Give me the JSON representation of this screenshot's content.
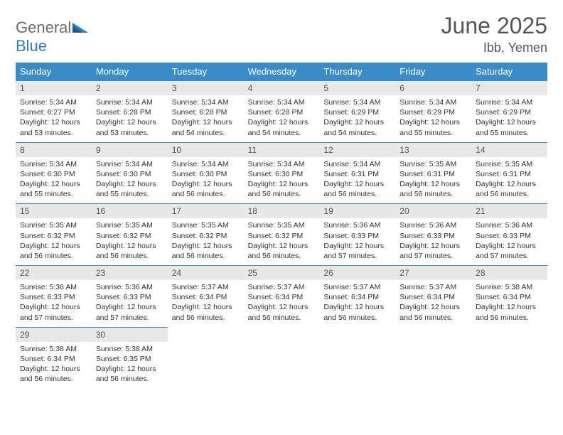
{
  "brand": {
    "part1": "General",
    "part2": "Blue"
  },
  "title": "June 2025",
  "location": "Ibb, Yemen",
  "colors": {
    "header_bg": "#3b8bc9",
    "header_text": "#ffffff",
    "daynum_bg": "#e8e8e8",
    "rule": "#3b8bc9",
    "brand_gray": "#6b6b6b",
    "brand_blue": "#2f7ac0"
  },
  "weekdays": [
    "Sunday",
    "Monday",
    "Tuesday",
    "Wednesday",
    "Thursday",
    "Friday",
    "Saturday"
  ],
  "days": [
    {
      "n": 1,
      "sunrise": "5:34 AM",
      "sunset": "6:27 PM",
      "daylight": "12 hours and 53 minutes."
    },
    {
      "n": 2,
      "sunrise": "5:34 AM",
      "sunset": "6:28 PM",
      "daylight": "12 hours and 53 minutes."
    },
    {
      "n": 3,
      "sunrise": "5:34 AM",
      "sunset": "6:28 PM",
      "daylight": "12 hours and 54 minutes."
    },
    {
      "n": 4,
      "sunrise": "5:34 AM",
      "sunset": "6:28 PM",
      "daylight": "12 hours and 54 minutes."
    },
    {
      "n": 5,
      "sunrise": "5:34 AM",
      "sunset": "6:29 PM",
      "daylight": "12 hours and 54 minutes."
    },
    {
      "n": 6,
      "sunrise": "5:34 AM",
      "sunset": "6:29 PM",
      "daylight": "12 hours and 55 minutes."
    },
    {
      "n": 7,
      "sunrise": "5:34 AM",
      "sunset": "6:29 PM",
      "daylight": "12 hours and 55 minutes."
    },
    {
      "n": 8,
      "sunrise": "5:34 AM",
      "sunset": "6:30 PM",
      "daylight": "12 hours and 55 minutes."
    },
    {
      "n": 9,
      "sunrise": "5:34 AM",
      "sunset": "6:30 PM",
      "daylight": "12 hours and 55 minutes."
    },
    {
      "n": 10,
      "sunrise": "5:34 AM",
      "sunset": "6:30 PM",
      "daylight": "12 hours and 56 minutes."
    },
    {
      "n": 11,
      "sunrise": "5:34 AM",
      "sunset": "6:30 PM",
      "daylight": "12 hours and 56 minutes."
    },
    {
      "n": 12,
      "sunrise": "5:34 AM",
      "sunset": "6:31 PM",
      "daylight": "12 hours and 56 minutes."
    },
    {
      "n": 13,
      "sunrise": "5:35 AM",
      "sunset": "6:31 PM",
      "daylight": "12 hours and 56 minutes."
    },
    {
      "n": 14,
      "sunrise": "5:35 AM",
      "sunset": "6:31 PM",
      "daylight": "12 hours and 56 minutes."
    },
    {
      "n": 15,
      "sunrise": "5:35 AM",
      "sunset": "6:32 PM",
      "daylight": "12 hours and 56 minutes."
    },
    {
      "n": 16,
      "sunrise": "5:35 AM",
      "sunset": "6:32 PM",
      "daylight": "12 hours and 56 minutes."
    },
    {
      "n": 17,
      "sunrise": "5:35 AM",
      "sunset": "6:32 PM",
      "daylight": "12 hours and 56 minutes."
    },
    {
      "n": 18,
      "sunrise": "5:35 AM",
      "sunset": "6:32 PM",
      "daylight": "12 hours and 56 minutes."
    },
    {
      "n": 19,
      "sunrise": "5:36 AM",
      "sunset": "6:33 PM",
      "daylight": "12 hours and 57 minutes."
    },
    {
      "n": 20,
      "sunrise": "5:36 AM",
      "sunset": "6:33 PM",
      "daylight": "12 hours and 57 minutes."
    },
    {
      "n": 21,
      "sunrise": "5:36 AM",
      "sunset": "6:33 PM",
      "daylight": "12 hours and 57 minutes."
    },
    {
      "n": 22,
      "sunrise": "5:36 AM",
      "sunset": "6:33 PM",
      "daylight": "12 hours and 57 minutes."
    },
    {
      "n": 23,
      "sunrise": "5:36 AM",
      "sunset": "6:33 PM",
      "daylight": "12 hours and 57 minutes."
    },
    {
      "n": 24,
      "sunrise": "5:37 AM",
      "sunset": "6:34 PM",
      "daylight": "12 hours and 56 minutes."
    },
    {
      "n": 25,
      "sunrise": "5:37 AM",
      "sunset": "6:34 PM",
      "daylight": "12 hours and 56 minutes."
    },
    {
      "n": 26,
      "sunrise": "5:37 AM",
      "sunset": "6:34 PM",
      "daylight": "12 hours and 56 minutes."
    },
    {
      "n": 27,
      "sunrise": "5:37 AM",
      "sunset": "6:34 PM",
      "daylight": "12 hours and 56 minutes."
    },
    {
      "n": 28,
      "sunrise": "5:38 AM",
      "sunset": "6:34 PM",
      "daylight": "12 hours and 56 minutes."
    },
    {
      "n": 29,
      "sunrise": "5:38 AM",
      "sunset": "6:34 PM",
      "daylight": "12 hours and 56 minutes."
    },
    {
      "n": 30,
      "sunrise": "5:38 AM",
      "sunset": "6:35 PM",
      "daylight": "12 hours and 56 minutes."
    }
  ],
  "labels": {
    "sunrise": "Sunrise:",
    "sunset": "Sunset:",
    "daylight": "Daylight:"
  }
}
